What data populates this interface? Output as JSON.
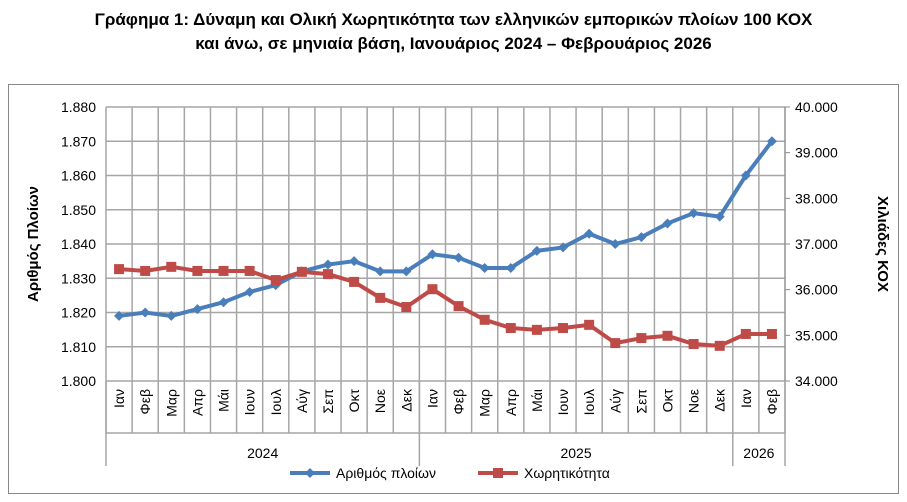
{
  "chart_data": {
    "type": "line",
    "title_line1": "Γράφημα 1: Δύναμη και Ολική Χωρητικότητα των ελληνικών εμπορικών πλοίων 100 ΚΟΧ",
    "title_line2": "και άνω, σε μηνιαία βάση, Ιανουάριος 2024 – Φεβρουάριος 2026",
    "ylabel": "Αριθμός Πλοίων",
    "y2label": "Χιλιάδες ΚΟΧ",
    "ylim": [
      1800,
      1880
    ],
    "y2lim": [
      34000,
      40000
    ],
    "yticks": [
      "1.800",
      "1.810",
      "1.820",
      "1.830",
      "1.840",
      "1.850",
      "1.860",
      "1.870",
      "1.880"
    ],
    "y2ticks": [
      "34.000",
      "35.000",
      "36.000",
      "37.000",
      "38.000",
      "39.000",
      "40.000"
    ],
    "categories": [
      "Ιαν",
      "Φεβ",
      "Μαρ",
      "Απρ",
      "Μάι",
      "Ιουν",
      "Ιουλ",
      "Αύγ",
      "Σεπ",
      "Οκτ",
      "Νοε",
      "Δεκ",
      "Ιαν",
      "Φεβ",
      "Μαρ",
      "Απρ",
      "Μάι",
      "Ιουν",
      "Ιουλ",
      "Αύγ",
      "Σεπ",
      "Οκτ",
      "Νοε",
      "Δεκ",
      "Ιαν",
      "Φεβ"
    ],
    "years": [
      {
        "label": "2024",
        "count": 12
      },
      {
        "label": "2025",
        "count": 12
      },
      {
        "label": "2026",
        "count": 2
      }
    ],
    "grid": true,
    "legend_position": "bottom",
    "series": [
      {
        "name": "Αριθμός πλοίων",
        "axis": "left",
        "color": "#4a7ebb",
        "marker": "diamond",
        "values": [
          1819,
          1820,
          1819,
          1821,
          1823,
          1826,
          1828,
          1832,
          1834,
          1835,
          1832,
          1832,
          1837,
          1836,
          1833,
          1833,
          1838,
          1839,
          1843,
          1840,
          1842,
          1846,
          1849,
          1848,
          1860,
          1870
        ]
      },
      {
        "name": "Χωρητικότητα",
        "axis": "right",
        "color": "#be4b48",
        "marker": "square",
        "values": [
          36450,
          36410,
          36500,
          36410,
          36410,
          36410,
          36210,
          36390,
          36340,
          36170,
          35820,
          35620,
          36010,
          35640,
          35340,
          35160,
          35120,
          35160,
          35230,
          34830,
          34940,
          34990,
          34810,
          34770,
          35030,
          35030
        ]
      }
    ]
  }
}
